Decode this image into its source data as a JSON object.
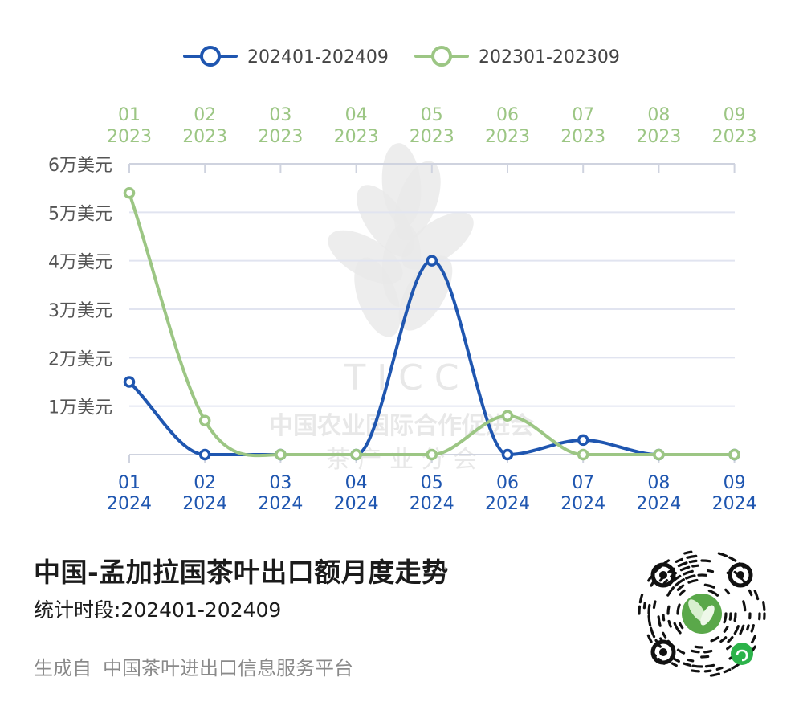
{
  "colors": {
    "series_2024": "#1f56b0",
    "series_2023": "#9cc684",
    "grid": "#e1e4f0",
    "axis_text": "#555555",
    "watermark": "#e8e8e8"
  },
  "watermark": {
    "letters": "T I C C",
    "line1": "中国农业国际合作促进会",
    "line2": "茶 产 业 分 会"
  },
  "chart_data": {
    "type": "line",
    "legend_position": "top-center",
    "grid": true,
    "y_axis": {
      "ylim": [
        0,
        60000
      ],
      "tick_labels": [
        "1万美元",
        "2万美元",
        "3万美元",
        "4万美元",
        "5万美元",
        "6万美元"
      ]
    },
    "x_axis_bottom": {
      "months": [
        "01",
        "02",
        "03",
        "04",
        "05",
        "06",
        "07",
        "08",
        "09"
      ],
      "year": "2024"
    },
    "x_axis_top": {
      "months": [
        "01",
        "02",
        "03",
        "04",
        "05",
        "06",
        "07",
        "08",
        "09"
      ],
      "year": "2023"
    },
    "series": [
      {
        "name": "202401-202409",
        "color_key": "series_2024",
        "values": [
          15000,
          0,
          0,
          0,
          40000,
          0,
          3000,
          0,
          0
        ]
      },
      {
        "name": "202301-202309",
        "color_key": "series_2023",
        "values": [
          54000,
          7000,
          0,
          0,
          0,
          8000,
          0,
          0,
          0
        ]
      }
    ]
  },
  "footer": {
    "title": "中国-孟加拉国茶叶出口额月度走势",
    "period": "统计时段:202401-202409",
    "generated_prefix": "生成自",
    "platform": "中国茶叶进出口信息服务平台"
  },
  "qr_icon": "mini-program-qr-code"
}
